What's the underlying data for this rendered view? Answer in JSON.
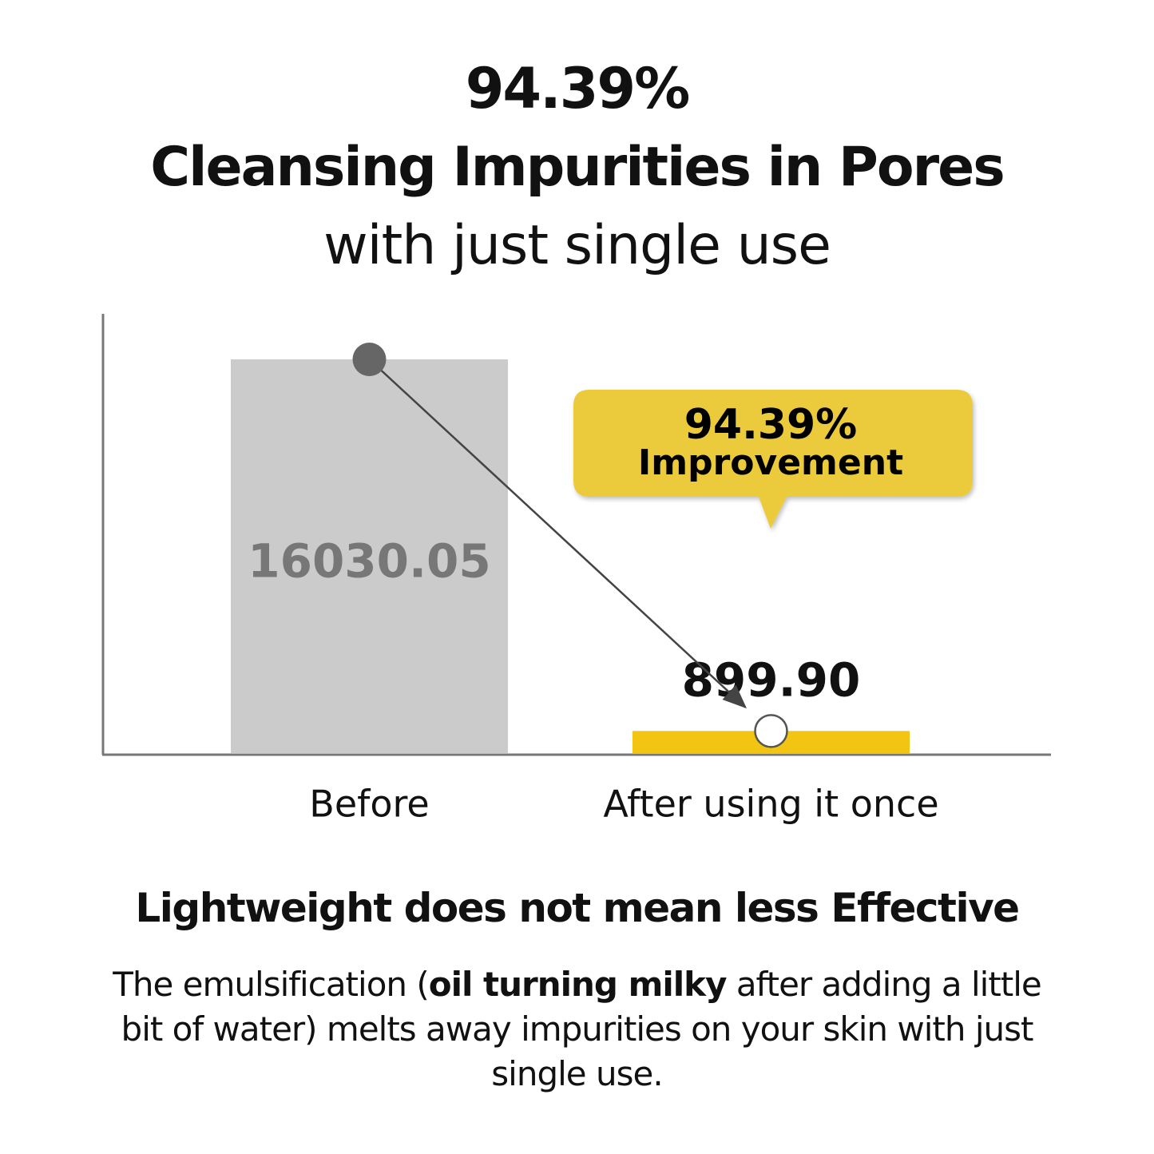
{
  "chart_data": {
    "type": "bar",
    "title": "94.39%",
    "subtitle": [
      "Cleansing Impurities in Pores",
      "with just single use"
    ],
    "categories": [
      "Before",
      "After using it once"
    ],
    "values": [
      16030.05,
      899.9
    ],
    "value_labels": [
      "16030.05",
      "899.90"
    ],
    "colors": [
      "#cbcbcb",
      "#f2c512"
    ],
    "label_colors": [
      "#777777",
      "#111111"
    ],
    "annotation": {
      "value": "94.39%",
      "text": "Improvement"
    }
  },
  "footer": {
    "heading": "Lightweight does not mean less Effective",
    "body": [
      "The emulsification (",
      "oil turning milky",
      " after adding a little bit of water) melts away impurities on your skin with just single use."
    ]
  }
}
